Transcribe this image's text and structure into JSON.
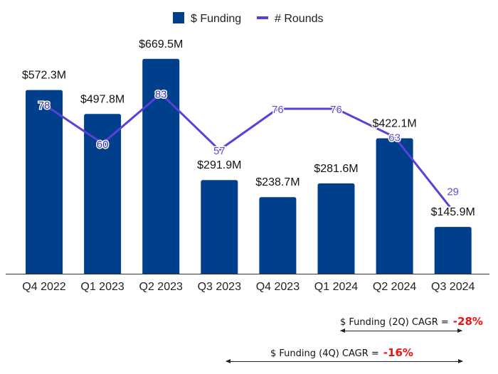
{
  "chart_data": {
    "type": "bar",
    "title": "",
    "xlabel": "",
    "ylabel": "",
    "categories": [
      "Q4 2022",
      "Q1 2023",
      "Q2 2023",
      "Q3 2023",
      "Q4 2023",
      "Q1 2024",
      "Q2 2024",
      "Q3 2024"
    ],
    "series": [
      {
        "name": "$ Funding",
        "type": "bar",
        "axis": "left",
        "color": "#003f8c",
        "values": [
          572.3,
          497.8,
          669.5,
          291.9,
          238.7,
          281.6,
          422.1,
          145.9
        ],
        "labels": [
          "$572.3M",
          "$497.8M",
          "$669.5M",
          "$291.9M",
          "$238.7M",
          "$281.6M",
          "$422.1M",
          "$145.9M"
        ]
      },
      {
        "name": "# Rounds",
        "type": "line",
        "axis": "right",
        "color": "#5b3fd9",
        "values": [
          78,
          60,
          83,
          57,
          76,
          76,
          63,
          29
        ],
        "labels": [
          "78",
          "60",
          "83",
          "57",
          "76",
          "76",
          "63",
          "29"
        ]
      }
    ],
    "ylim": [
      0,
      700
    ],
    "y2lim": [
      0,
      94
    ],
    "grid": false,
    "legend": "top-center"
  },
  "annotations": {
    "cagr_2q": {
      "label": "$ Funding (2Q) CAGR =",
      "value": "-28%"
    },
    "cagr_4q": {
      "label": "$ Funding (4Q) CAGR =",
      "value": "-16%"
    }
  },
  "colors": {
    "negative": "#ee1111"
  }
}
